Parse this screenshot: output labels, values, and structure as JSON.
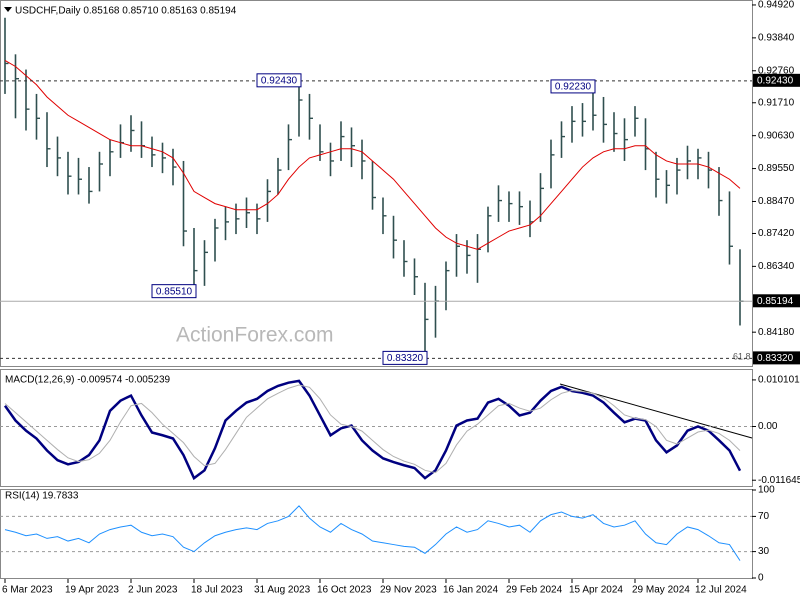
{
  "chart_data": [
    {
      "type": "ohlc",
      "title": "USDCHF,Daily  0.85168 0.85710 0.85163 0.85194",
      "watermark": "ActionForex.com",
      "fib_label": "61.8",
      "color": "#2f4f4f",
      "high": [
        0.945,
        0.933,
        0.928,
        0.92,
        0.914,
        0.906,
        0.901,
        0.899,
        0.896,
        0.901,
        0.905,
        0.91,
        0.913,
        0.911,
        0.906,
        0.904,
        0.902,
        0.898,
        0.876,
        0.872,
        0.879,
        0.883,
        0.884,
        0.886,
        0.884,
        0.892,
        0.899,
        0.91,
        0.9243,
        0.92,
        0.91,
        0.904,
        0.911,
        0.909,
        0.905,
        0.898,
        0.886,
        0.88,
        0.872,
        0.866,
        0.858,
        0.857,
        0.865,
        0.874,
        0.872,
        0.874,
        0.883,
        0.89,
        0.888,
        0.888,
        0.885,
        0.894,
        0.905,
        0.911,
        0.916,
        0.917,
        0.9223,
        0.919,
        0.914,
        0.912,
        0.916,
        0.912,
        0.901,
        0.895,
        0.899,
        0.903,
        0.902,
        0.901,
        0.896,
        0.888,
        0.869
      ],
      "low": [
        0.92,
        0.912,
        0.908,
        0.905,
        0.896,
        0.893,
        0.887,
        0.887,
        0.884,
        0.888,
        0.893,
        0.899,
        0.901,
        0.899,
        0.896,
        0.894,
        0.89,
        0.87,
        0.8551,
        0.857,
        0.865,
        0.872,
        0.874,
        0.876,
        0.874,
        0.878,
        0.887,
        0.895,
        0.906,
        0.905,
        0.898,
        0.893,
        0.898,
        0.896,
        0.892,
        0.882,
        0.874,
        0.866,
        0.86,
        0.854,
        0.8332,
        0.84,
        0.849,
        0.86,
        0.861,
        0.858,
        0.868,
        0.878,
        0.878,
        0.877,
        0.873,
        0.878,
        0.889,
        0.899,
        0.904,
        0.906,
        0.908,
        0.904,
        0.901,
        0.898,
        0.906,
        0.895,
        0.886,
        0.884,
        0.887,
        0.892,
        0.892,
        0.889,
        0.88,
        0.864,
        0.844
      ],
      "close": [
        0.93,
        0.925,
        0.915,
        0.912,
        0.902,
        0.899,
        0.893,
        0.892,
        0.888,
        0.897,
        0.901,
        0.904,
        0.908,
        0.903,
        0.9,
        0.899,
        0.896,
        0.875,
        0.862,
        0.868,
        0.876,
        0.878,
        0.879,
        0.881,
        0.879,
        0.888,
        0.895,
        0.905,
        0.918,
        0.912,
        0.901,
        0.898,
        0.906,
        0.903,
        0.898,
        0.886,
        0.88,
        0.872,
        0.865,
        0.86,
        0.846,
        0.852,
        0.862,
        0.87,
        0.867,
        0.869,
        0.88,
        0.885,
        0.884,
        0.883,
        0.878,
        0.889,
        0.9,
        0.906,
        0.911,
        0.911,
        0.913,
        0.91,
        0.907,
        0.905,
        0.912,
        0.902,
        0.892,
        0.89,
        0.895,
        0.898,
        0.899,
        0.895,
        0.885,
        0.87,
        0.85194
      ],
      "ma": {
        "color": "#e00000",
        "values": [
          0.931,
          0.929,
          0.926,
          0.923,
          0.919,
          0.916,
          0.913,
          0.911,
          0.909,
          0.907,
          0.905,
          0.904,
          0.903,
          0.903,
          0.902,
          0.901,
          0.899,
          0.894,
          0.888,
          0.886,
          0.884,
          0.883,
          0.882,
          0.882,
          0.882,
          0.884,
          0.887,
          0.892,
          0.896,
          0.899,
          0.9,
          0.901,
          0.902,
          0.902,
          0.901,
          0.898,
          0.895,
          0.892,
          0.888,
          0.884,
          0.88,
          0.876,
          0.873,
          0.871,
          0.87,
          0.869,
          0.871,
          0.873,
          0.875,
          0.876,
          0.877,
          0.88,
          0.884,
          0.888,
          0.892,
          0.896,
          0.899,
          0.901,
          0.902,
          0.902,
          0.903,
          0.903,
          0.9,
          0.898,
          0.897,
          0.897,
          0.897,
          0.896,
          0.894,
          0.892,
          0.889
        ]
      },
      "ylim": [
        0.8307,
        0.9505
      ],
      "yticks": [
        {
          "value": 0.9492,
          "label": "0.94920"
        },
        {
          "value": 0.9384,
          "label": "0.93840"
        },
        {
          "value": 0.9276,
          "label": "0.92760"
        },
        {
          "value": 0.9171,
          "label": "0.91710"
        },
        {
          "value": 0.9063,
          "label": "0.90630"
        },
        {
          "value": 0.8955,
          "label": "0.89550"
        },
        {
          "value": 0.8847,
          "label": "0.88470"
        },
        {
          "value": 0.8742,
          "label": "0.87420"
        },
        {
          "value": 0.8634,
          "label": "0.86340"
        },
        {
          "value": 0.8418,
          "label": "0.84180"
        }
      ],
      "levels": [
        {
          "value": 0.9243,
          "label": "0.92430",
          "style": "dashed"
        },
        {
          "value": 0.8332,
          "label": "0.83320",
          "style": "dashed"
        },
        {
          "value": 0.85194,
          "label": "0.85194",
          "style": "solid"
        }
      ],
      "annotations": [
        {
          "value": 0.9243,
          "label": "0.92430"
        },
        {
          "value": 0.8551,
          "label": "0.85510"
        },
        {
          "value": 0.8332,
          "label": "0.83320"
        },
        {
          "value": 0.9223,
          "label": "0.92230"
        }
      ]
    },
    {
      "type": "line",
      "title": "MACD(12,26,9) -0.009574 -0.005239",
      "series": [
        {
          "color": "#000080",
          "values": [
            0.0045,
            0.0013,
            -0.0009,
            -0.0026,
            -0.0052,
            -0.0073,
            -0.0082,
            -0.0077,
            -0.0062,
            -0.003,
            0.0034,
            0.0056,
            0.0067,
            0.0024,
            -0.0013,
            -0.0019,
            -0.0026,
            -0.0062,
            -0.0112,
            -0.0095,
            -0.0047,
            0.0013,
            0.0034,
            0.0052,
            0.006,
            0.0077,
            0.0088,
            0.0095,
            0.0099,
            0.0067,
            0.0024,
            -0.0019,
            -0.0004,
            0.0002,
            -0.003,
            -0.0052,
            -0.0069,
            -0.0077,
            -0.0084,
            -0.009,
            -0.0112,
            -0.0095,
            -0.0052,
            0.0002,
            0.0013,
            0.0017,
            0.0052,
            0.006,
            0.0045,
            0.0024,
            0.003,
            0.0056,
            0.0077,
            0.0086,
            0.0077,
            0.0073,
            0.0067,
            0.0052,
            0.003,
            0.0009,
            0.0017,
            0.0013,
            -0.003,
            -0.0056,
            -0.0041,
            -0.0009,
            0.0,
            -0.0009,
            -0.003,
            -0.0052,
            -0.009574
          ]
        },
        {
          "color": "#b0b0b0",
          "values": [
            0.005,
            0.003,
            0.001,
            -0.001,
            -0.003,
            -0.005,
            -0.0068,
            -0.0076,
            -0.0072,
            -0.0058,
            -0.003,
            0.001,
            0.0045,
            0.005,
            0.003,
            0.0005,
            -0.0015,
            -0.0035,
            -0.0065,
            -0.0085,
            -0.008,
            -0.005,
            -0.0015,
            0.002,
            0.004,
            0.006,
            0.0072,
            0.0083,
            0.009,
            0.0085,
            0.006,
            0.0025,
            0.0005,
            0.0,
            -0.001,
            -0.003,
            -0.005,
            -0.0065,
            -0.0075,
            -0.0082,
            -0.0095,
            -0.01,
            -0.008,
            -0.004,
            -0.001,
            0.0005,
            0.0025,
            0.0045,
            0.005,
            0.004,
            0.0033,
            0.004,
            0.0058,
            0.0072,
            0.0078,
            0.0076,
            0.0072,
            0.0062,
            0.0045,
            0.0025,
            0.0018,
            0.0015,
            0.0,
            -0.003,
            -0.0038,
            -0.0025,
            -0.0012,
            -0.0008,
            -0.0015,
            -0.003,
            -0.005239
          ]
        }
      ],
      "ylim": [
        -0.0129,
        0.01225
      ],
      "yticks": [
        0.010101,
        {
          "value": 0,
          "label": "0.00"
        },
        -0.011645
      ],
      "levels": [
        0
      ]
    },
    {
      "type": "line",
      "title": "RSI(14) 19.7833",
      "categories": [
        "6 Mar 2023",
        null,
        null,
        null,
        null,
        null,
        "19 Apr 2023",
        null,
        null,
        null,
        null,
        null,
        "2 Jun 2023",
        null,
        null,
        null,
        null,
        null,
        "18 Jul 2023",
        null,
        null,
        null,
        null,
        null,
        "31 Aug 2023",
        null,
        null,
        null,
        null,
        null,
        "16 Oct 2023",
        null,
        null,
        null,
        null,
        null,
        "29 Nov 2023",
        null,
        null,
        null,
        null,
        null,
        "16 Jan 2024",
        null,
        null,
        null,
        null,
        null,
        "29 Feb 2024",
        null,
        null,
        null,
        null,
        null,
        "15 Apr 2024",
        null,
        null,
        null,
        null,
        null,
        "29 May 2024",
        null,
        null,
        null,
        null,
        null,
        "12 Jul 2024",
        null,
        null,
        null,
        null
      ],
      "series": [
        {
          "color": "#1e90ff",
          "values": [
            55,
            52,
            48,
            50,
            45,
            47,
            42,
            45,
            40,
            50,
            55,
            58,
            60,
            52,
            48,
            50,
            47,
            35,
            30,
            40,
            48,
            52,
            55,
            57,
            55,
            62,
            65,
            70,
            82,
            68,
            58,
            52,
            62,
            55,
            50,
            42,
            40,
            38,
            36,
            35,
            28,
            38,
            50,
            58,
            52,
            55,
            65,
            62,
            58,
            60,
            52,
            65,
            72,
            75,
            70,
            68,
            72,
            62,
            58,
            60,
            65,
            50,
            40,
            38,
            50,
            58,
            55,
            48,
            40,
            38,
            19.7833
          ]
        }
      ],
      "ylim": [
        0,
        100
      ],
      "yticks": [
        100,
        70,
        30,
        0
      ],
      "levels": [
        70,
        30
      ]
    }
  ]
}
